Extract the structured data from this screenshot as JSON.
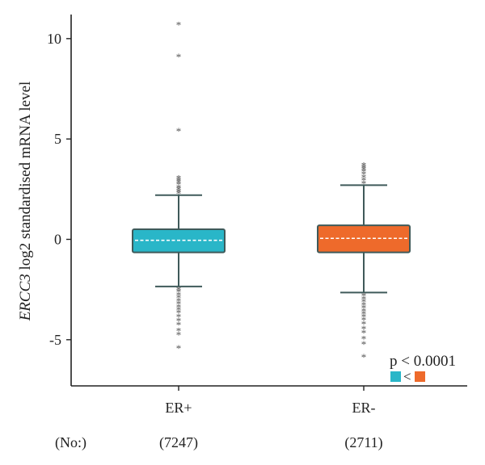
{
  "chart_data": {
    "type": "box",
    "ylabel_gene": "ERCC3",
    "ylabel_rest": " log2 standardised mRNA level",
    "ylim": [
      -7.3,
      11.2
    ],
    "yticks": [
      10,
      5,
      0,
      -5
    ],
    "ytick_labels": [
      "10",
      "5",
      "0",
      "-5"
    ],
    "categories": [
      "ER+",
      "ER-"
    ],
    "counts_label": "(No:)",
    "counts": [
      "(7247)",
      "(2711)"
    ],
    "colors": [
      "#29B6C8",
      "#EE6A2B"
    ],
    "boxes": [
      {
        "category": "ER+",
        "whisker_low": -2.35,
        "q1": -0.65,
        "median": -0.05,
        "q3": 0.5,
        "whisker_high": 2.2,
        "outliers": [
          10.7,
          9.1,
          5.4,
          3.05,
          2.95,
          2.85,
          2.75,
          2.6,
          2.5,
          2.4,
          2.3,
          -2.5,
          -2.6,
          -2.75,
          -2.9,
          -3.05,
          -3.2,
          -3.35,
          -3.5,
          -3.65,
          -3.85,
          -4.05,
          -4.25,
          -4.55,
          -4.75,
          -5.4
        ]
      },
      {
        "category": "ER-",
        "whisker_low": -2.65,
        "q1": -0.65,
        "median": 0.05,
        "q3": 0.7,
        "whisker_high": 2.7,
        "outliers": [
          3.7,
          3.6,
          3.5,
          3.4,
          3.25,
          3.1,
          2.95,
          2.8,
          -2.8,
          -2.95,
          -3.1,
          -3.25,
          -3.4,
          -3.55,
          -3.7,
          -3.85,
          -4.0,
          -4.2,
          -4.45,
          -4.65,
          -4.95,
          -5.2,
          -5.85
        ]
      }
    ],
    "annotation": {
      "text": "p < 0.0001",
      "compare": "<"
    }
  }
}
